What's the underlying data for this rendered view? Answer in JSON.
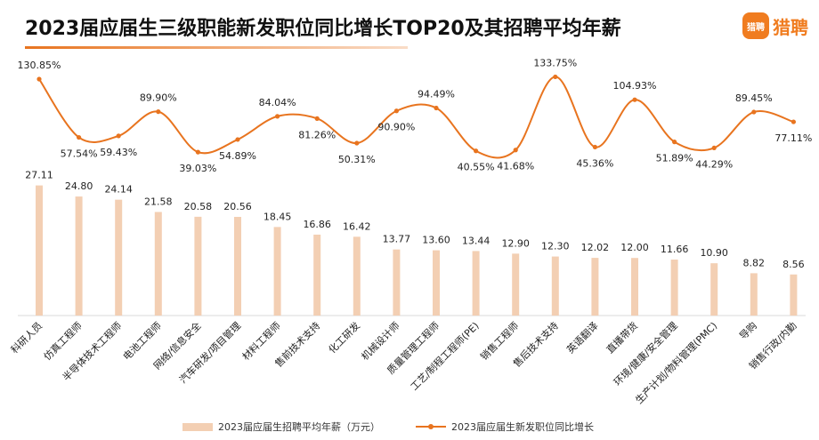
{
  "title": "2023届应届生三级职能新发职位同比增长TOP20及其招聘平均年薪",
  "logo": {
    "mark": "猎聘",
    "text": "猎聘"
  },
  "colors": {
    "bar": "#f3cfb3",
    "line": "#e8741f"
  },
  "chart_data": {
    "type": "bar",
    "categories": [
      "科研人员",
      "仿真工程师",
      "半导体技术工程师",
      "电池工程师",
      "网络/信息安全",
      "汽车研发/项目管理",
      "材料工程师",
      "售前技术支持",
      "化工研发",
      "机械设计师",
      "质量管理工程师",
      "工艺/制程工程师(PE)",
      "销售工程师",
      "售后技术支持",
      "英语翻译",
      "直播带货",
      "环境/健康/安全管理",
      "生产计划/物料管理(PMC)",
      "导购",
      "销售行政/内勤"
    ],
    "series": [
      {
        "name": "2023届应届生招聘平均年薪（万元）",
        "type": "bar",
        "values": [
          27.11,
          24.8,
          24.14,
          21.58,
          20.58,
          20.56,
          18.45,
          16.86,
          16.42,
          13.77,
          13.6,
          13.44,
          12.9,
          12.3,
          12.02,
          12.0,
          11.66,
          10.9,
          8.82,
          8.56
        ],
        "labels": [
          "27.11",
          "24.80",
          "24.14",
          "21.58",
          "20.58",
          "20.56",
          "18.45",
          "16.86",
          "16.42",
          "13.77",
          "13.60",
          "13.44",
          "12.90",
          "12.30",
          "12.02",
          "12.00",
          "11.66",
          "10.90",
          "8.82",
          "8.56"
        ]
      },
      {
        "name": "2023届应届生新发职位同比增长",
        "type": "line",
        "values": [
          130.85,
          57.54,
          59.43,
          89.9,
          39.03,
          54.89,
          84.04,
          81.26,
          50.31,
          90.9,
          94.49,
          40.55,
          41.68,
          133.75,
          45.36,
          104.93,
          51.89,
          44.29,
          89.45,
          77.11
        ],
        "labels": [
          "130.85%",
          "57.54%",
          "59.43%",
          "89.90%",
          "39.03%",
          "54.89%",
          "84.04%",
          "81.26%",
          "50.31%",
          "90.90%",
          "94.49%",
          "40.55%",
          "41.68%",
          "133.75%",
          "45.36%",
          "104.93%",
          "51.89%",
          "44.29%",
          "89.45%",
          "77.11%"
        ]
      }
    ]
  }
}
